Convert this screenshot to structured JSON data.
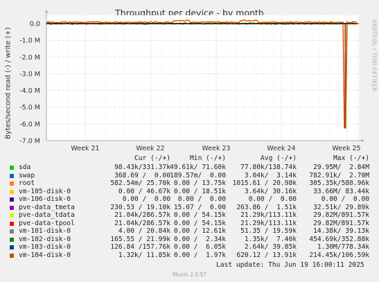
{
  "chart_data": {
    "type": "line",
    "title": "Throughput per device - by month",
    "ylabel": "Bytes/second read (-) / write (+)",
    "ylim": [
      -7000000,
      500000
    ],
    "yticks": [
      "0.0",
      "-1.0 M",
      "-2.0 M",
      "-3.0 M",
      "-4.0 M",
      "-5.0 M",
      "-6.0 M",
      "-7.0 M"
    ],
    "yvalues": [
      0,
      -1000000,
      -2000000,
      -3000000,
      -4000000,
      -5000000,
      -6000000,
      -7000000
    ],
    "xticks": [
      "Week 21",
      "Week 22",
      "Week 23",
      "Week 24",
      "Week 25"
    ],
    "grid": true,
    "series": [
      {
        "name": "sda",
        "color": "#00cc00"
      },
      {
        "name": "swap",
        "color": "#0066b3"
      },
      {
        "name": "root",
        "color": "#ff8000"
      },
      {
        "name": "vm-105-disk-0",
        "color": "#ffcc00"
      },
      {
        "name": "vm-106-disk-0",
        "color": "#330099"
      },
      {
        "name": "pve-data_tmeta",
        "color": "#990099"
      },
      {
        "name": "pve-data_tdata",
        "color": "#ccff00"
      },
      {
        "name": "pve-data-tpool",
        "color": "#ff0000"
      },
      {
        "name": "vm-101-disk-0",
        "color": "#808080"
      },
      {
        "name": "vm-102-disk-0",
        "color": "#008f00"
      },
      {
        "name": "vm-103-disk-0",
        "color": "#00487d"
      },
      {
        "name": "vm-104-disk-0",
        "color": "#b35a00"
      }
    ]
  },
  "side_label": "RRDTOOL / TOBI OETIKER",
  "legend": {
    "headers": {
      "cur": "Cur (-/+)",
      "min": "Min (-/+)",
      "avg": "Avg (-/+)",
      "max": "Max (-/+)"
    },
    "rows": [
      {
        "name": "sda",
        "cur": "98.43k/331.37k",
        "min": "49.61k/ 71.60k",
        "avg": "77.80k/138.74k",
        "max": "29.95M/  2.84M"
      },
      {
        "name": "swap",
        "cur": "368.69 /  0.00",
        "min": "189.57m/  0.00",
        "avg": "3.04k/  3.14k",
        "max": "782.91k/  2.70M"
      },
      {
        "name": "root",
        "cur": "582.54m/ 25.70k",
        "min": "0.00 / 13.75k",
        "avg": "1015.61 / 20.98k",
        "max": "305.35k/588.96k"
      },
      {
        "name": "vm-105-disk-0",
        "cur": "0.00 / 46.67k",
        "min": "0.00 / 18.51k",
        "avg": "3.64k/ 30.16k",
        "max": "33.66M/ 83.44k"
      },
      {
        "name": "vm-106-disk-0",
        "cur": "0.00 /  0.00",
        "min": "0.00 /  0.00",
        "avg": "0.00 /  0.00",
        "max": "0.00 /  0.00"
      },
      {
        "name": "pve-data_tmeta",
        "cur": "230.53 / 19.10k",
        "min": "15.07 /  0.00",
        "avg": "263.86 /  1.51k",
        "max": "32.51k/ 29.89k"
      },
      {
        "name": "pve-data_tdata",
        "cur": "21.04k/286.57k",
        "min": "0.00 / 54.15k",
        "avg": "21.29k/113.11k",
        "max": "29.82M/891.57k"
      },
      {
        "name": "pve-data-tpool",
        "cur": "21.04k/286.57k",
        "min": "0.00 / 54.15k",
        "avg": "21.29k/113.11k",
        "max": "29.82M/891.57k"
      },
      {
        "name": "vm-101-disk-0",
        "cur": "4.00 / 20.84k",
        "min": "0.00 / 12.61k",
        "avg": "51.35 / 19.59k",
        "max": "14.38k/ 39.13k"
      },
      {
        "name": "vm-102-disk-0",
        "cur": "165.55 / 21.99k",
        "min": "0.00 /  2.34k",
        "avg": "1.35k/  7.40k",
        "max": "454.69k/352.88k"
      },
      {
        "name": "vm-103-disk-0",
        "cur": "126.84 /157.76k",
        "min": "0.00 /  6.05k",
        "avg": "2.64k/ 39.85k",
        "max": "1.30M/778.34k"
      },
      {
        "name": "vm-104-disk-0",
        "cur": "1.32k/ 11.85k",
        "min": "0.00 /  1.97k",
        "avg": "620.12 / 13.91k",
        "max": "214.45k/106.59k"
      }
    ]
  },
  "last_update": "Last update: Thu Jun 19 16:00:11 2025",
  "munin_version": "Munin 2.0.57"
}
